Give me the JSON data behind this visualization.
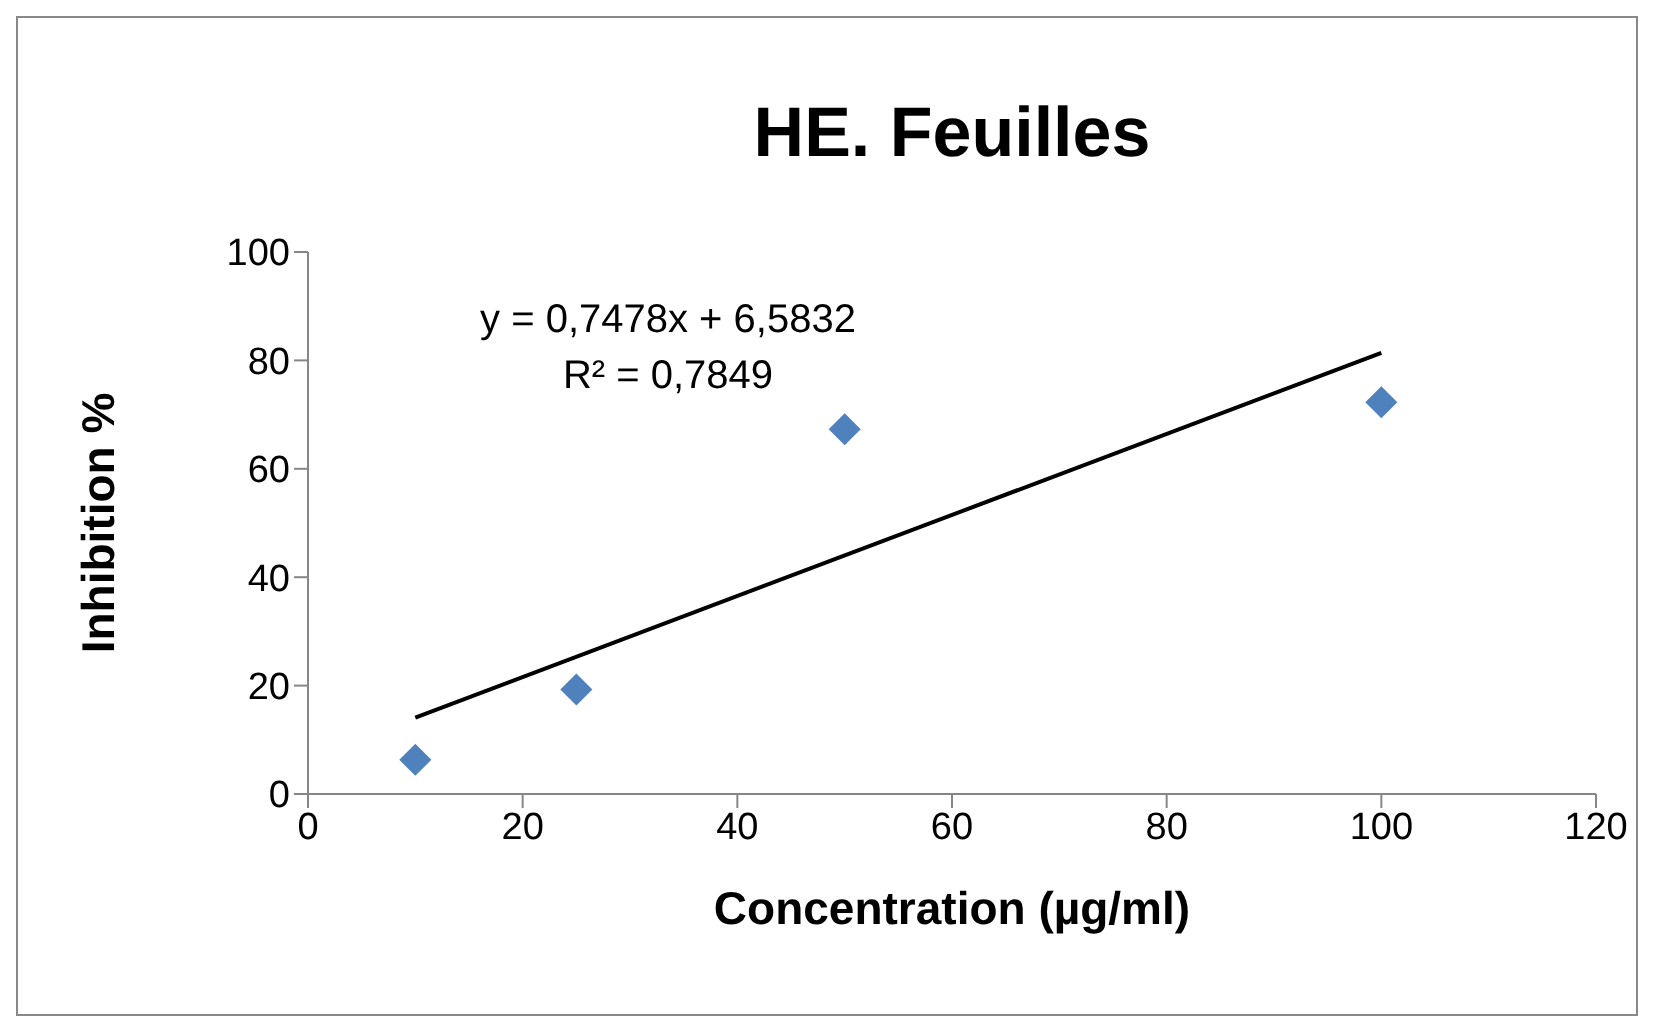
{
  "chart_data": {
    "type": "scatter",
    "title": "HE. Feuilles",
    "xlabel": "Concentration (µg/ml)",
    "ylabel": "Inhibition %",
    "annotations": [
      "y = 0,7478x + 6,5832",
      "R² = 0,7849"
    ],
    "series": [
      {
        "color": "#4f81bd",
        "x": [
          10,
          25,
          50,
          100
        ],
        "values": [
          6.3,
          19.3,
          67.3,
          72.3
        ],
        "marker": "diamond"
      },
      {
        "type": "line",
        "color": "#000000",
        "x": [
          10,
          100
        ],
        "values": [
          14.1,
          81.4
        ],
        "marker": "none"
      }
    ],
    "xlim": [
      0,
      120
    ],
    "xticks": [
      0,
      20,
      40,
      60,
      80,
      100,
      120
    ],
    "ylim": [
      0,
      100
    ],
    "yticks": [
      0,
      20,
      40,
      60,
      80,
      100
    ],
    "grid": false
  }
}
